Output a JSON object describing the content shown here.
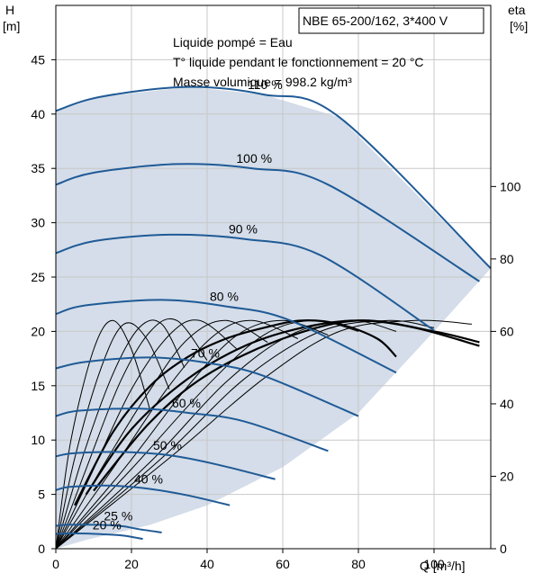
{
  "chart_data": {
    "type": "line",
    "title": "NBE 65-200/162, 3*400 V",
    "notes": [
      "Liquide pompé = Eau",
      "T° liquide pendant le fonctionnement = 20 °C",
      "Masse volumique = 998.2 kg/m³"
    ],
    "xlabel": "Q [m³/h]",
    "ylabel": "H",
    "ylabel_unit": "[m]",
    "y2label": "eta",
    "y2label_unit": "[%]",
    "xlim": [
      0,
      115
    ],
    "ylim": [
      0,
      50
    ],
    "y2lim": [
      0,
      150
    ],
    "x_ticks": [
      "0",
      "20",
      "40",
      "60",
      "80",
      "100"
    ],
    "y_ticks": [
      "0",
      "5",
      "10",
      "15",
      "20",
      "25",
      "30",
      "35",
      "40",
      "45"
    ],
    "y2_ticks": [
      "0",
      "20",
      "40",
      "60",
      "80",
      "100"
    ],
    "colors": {
      "head_curve": "#1f5a96",
      "head_curve_thin": "#0d3d73",
      "eff_curve": "#000000",
      "area_main": "#d4dde9",
      "area_light": "#ecf1f8"
    },
    "series": [
      {
        "name": "110 %",
        "x": [
          0,
          12,
          35,
          55,
          75,
          115
        ],
        "y": [
          40.3,
          41.6,
          42.5,
          41.8,
          39.7,
          25.8
        ]
      },
      {
        "name": "100 %",
        "x": [
          0,
          10,
          32,
          52,
          72,
          112
        ],
        "y": [
          33.5,
          34.6,
          35.4,
          35.0,
          33.5,
          24.6
        ]
      },
      {
        "name": "90 %",
        "x": [
          0,
          10,
          30,
          50,
          70,
          100
        ],
        "y": [
          27.2,
          28.3,
          28.9,
          28.5,
          27.0,
          20.1
        ]
      },
      {
        "name": "80 %",
        "x": [
          0,
          8,
          28,
          45,
          62,
          90
        ],
        "y": [
          21.6,
          22.4,
          22.9,
          22.3,
          21.0,
          16.2
        ]
      },
      {
        "name": "70 %",
        "x": [
          0,
          8,
          25,
          40,
          55,
          80
        ],
        "y": [
          16.6,
          17.2,
          17.6,
          17.1,
          15.9,
          12.2
        ]
      },
      {
        "name": "60 %",
        "x": [
          0,
          6,
          22,
          35,
          50,
          72
        ],
        "y": [
          12.2,
          12.7,
          12.9,
          12.5,
          11.7,
          9.0
        ]
      },
      {
        "name": "50 %",
        "x": [
          0,
          5,
          18,
          30,
          42,
          58
        ],
        "y": [
          8.5,
          8.8,
          8.9,
          8.6,
          7.8,
          6.4
        ]
      },
      {
        "name": "40 %",
        "x": [
          0,
          4,
          15,
          25,
          35,
          46
        ],
        "y": [
          5.4,
          5.7,
          5.8,
          5.5,
          4.9,
          4.0
        ]
      },
      {
        "name": "25 %",
        "x": [
          0,
          3,
          10,
          17,
          22,
          28
        ],
        "y": [
          2.1,
          2.2,
          2.2,
          2.1,
          1.8,
          1.5
        ]
      },
      {
        "name": "20 %",
        "x": [
          0,
          2,
          8,
          14,
          18,
          23
        ],
        "y": [
          1.35,
          1.4,
          1.4,
          1.3,
          1.2,
          0.9
        ]
      }
    ],
    "efficiency_curves": [
      {
        "x": [
          0,
          4,
          10,
          15,
          20,
          25
        ],
        "y": [
          0,
          30,
          55,
          63,
          55,
          38
        ]
      },
      {
        "x": [
          0,
          5,
          12,
          18,
          24,
          30
        ],
        "y": [
          0,
          25,
          50,
          62,
          58,
          44
        ]
      },
      {
        "x": [
          0,
          7,
          15,
          22,
          28,
          34
        ],
        "y": [
          0,
          25,
          48,
          61,
          62,
          50
        ]
      },
      {
        "x": [
          0,
          8,
          17,
          25,
          32,
          40
        ],
        "y": [
          0,
          22,
          46,
          60,
          63,
          52
        ]
      },
      {
        "x": [
          0,
          10,
          20,
          30,
          38,
          48
        ],
        "y": [
          0,
          22,
          44,
          59,
          63,
          55
        ]
      },
      {
        "x": [
          0,
          12,
          25,
          35,
          45,
          56
        ],
        "y": [
          0,
          22,
          44,
          58,
          63,
          57
        ]
      },
      {
        "x": [
          0,
          15,
          30,
          42,
          52,
          64
        ],
        "y": [
          0,
          22,
          45,
          59,
          63,
          58
        ]
      },
      {
        "x": [
          0,
          18,
          35,
          48,
          60,
          72
        ],
        "y": [
          0,
          22,
          45,
          59,
          63,
          59
        ]
      },
      {
        "x": [
          0,
          20,
          40,
          55,
          68,
          80
        ],
        "y": [
          0,
          22,
          45,
          59,
          63,
          60
        ]
      },
      {
        "x": [
          0,
          25,
          45,
          62,
          78,
          90
        ],
        "y": [
          0,
          24,
          46,
          59,
          63,
          60
        ]
      },
      {
        "x": [
          0,
          28,
          50,
          70,
          88,
          100
        ],
        "y": [
          0,
          25,
          47,
          60,
          63,
          61
        ]
      },
      {
        "x": [
          0,
          30,
          55,
          75,
          95,
          110
        ],
        "y": [
          0,
          25,
          47,
          60,
          63,
          62
        ]
      },
      {
        "x": [
          5,
          15,
          25,
          35,
          45,
          55,
          65,
          75,
          85,
          90
        ],
        "y": [
          12,
          32,
          45,
          53,
          58,
          61,
          63,
          62,
          58,
          53
        ]
      },
      {
        "x": [
          8,
          20,
          35,
          50,
          65,
          80,
          95,
          112
        ],
        "y": [
          15,
          33,
          47,
          56,
          61,
          63,
          61,
          56
        ]
      },
      {
        "x": [
          10,
          25,
          40,
          60,
          80,
          100,
          112
        ],
        "y": [
          16,
          35,
          48,
          58,
          63,
          60,
          57
        ]
      }
    ],
    "envelope": {
      "x": [
        0,
        12,
        35,
        55,
        75,
        115,
        100,
        80,
        60,
        40,
        25,
        8,
        0
      ],
      "y": [
        40.3,
        41.6,
        42.5,
        41.8,
        39.7,
        25.8,
        20.0,
        12.5,
        7.5,
        4.0,
        2.2,
        0.8,
        0
      ]
    },
    "light_region": {
      "x": [
        0,
        12,
        10,
        9,
        8,
        7,
        0
      ],
      "y": [
        40.3,
        41.6,
        30,
        20,
        10,
        2,
        0
      ]
    }
  }
}
